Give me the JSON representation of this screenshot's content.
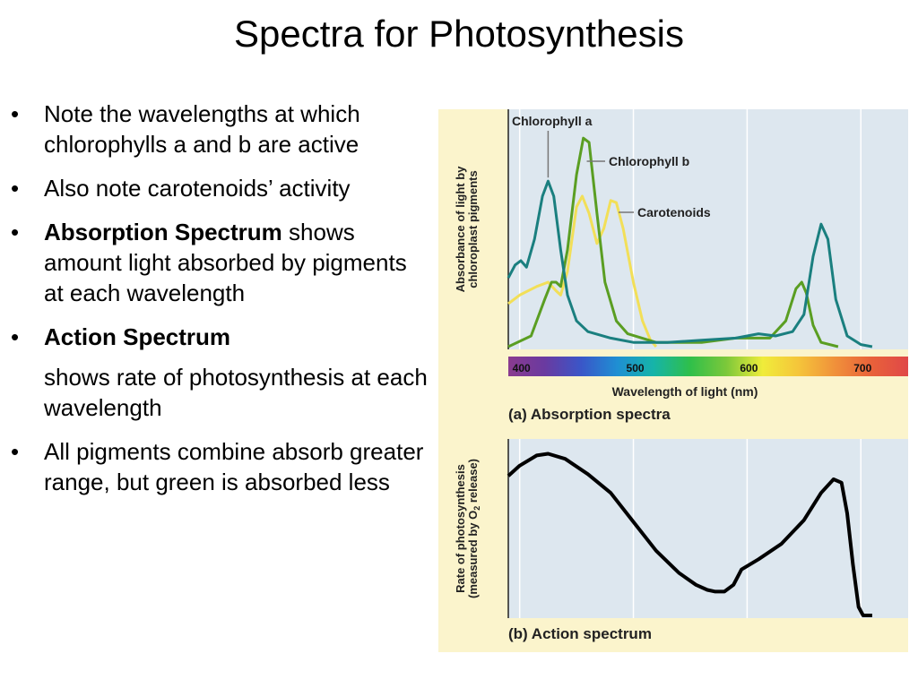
{
  "slide": {
    "title": "Spectra for Photosynthesis",
    "bullets": [
      {
        "bold": "",
        "text": "Note the wavelengths at which chlorophylls a and b are active"
      },
      {
        "bold": "",
        "text": "Also note carotenoids’ activity"
      },
      {
        "bold": "Absorption Spectrum",
        "text": " shows amount light absorbed by pigments at each wavelength"
      },
      {
        "bold": "Action Spectrum",
        "text": ""
      },
      {
        "bold": "",
        "text": "shows rate of photosynthesis at each wavelength",
        "continuation": true
      },
      {
        "bold": "",
        "text": "All pigments combine absorb greater range, but green is absorbed less"
      }
    ],
    "bullet_glyph": "•"
  },
  "chart_data": [
    {
      "type": "line",
      "panel_label": "(a) Absorption spectra",
      "xlabel": "Wavelength of light (nm)",
      "ylabel": "Absorbance of light by chloroplast pigments",
      "xlim": [
        390,
        740
      ],
      "x_ticks": [
        400,
        500,
        600,
        700
      ],
      "grid": true,
      "series": [
        {
          "name": "Chlorophyll a",
          "color": "#1a7f7f",
          "points": [
            [
              390,
              0.32
            ],
            [
              396,
              0.38
            ],
            [
              401,
              0.4
            ],
            [
              406,
              0.37
            ],
            [
              413,
              0.5
            ],
            [
              420,
              0.7
            ],
            [
              425,
              0.77
            ],
            [
              430,
              0.7
            ],
            [
              436,
              0.45
            ],
            [
              442,
              0.24
            ],
            [
              450,
              0.12
            ],
            [
              460,
              0.07
            ],
            [
              480,
              0.04
            ],
            [
              500,
              0.02
            ],
            [
              530,
              0.02
            ],
            [
              560,
              0.03
            ],
            [
              590,
              0.04
            ],
            [
              610,
              0.06
            ],
            [
              625,
              0.05
            ],
            [
              640,
              0.07
            ],
            [
              650,
              0.15
            ],
            [
              658,
              0.42
            ],
            [
              665,
              0.57
            ],
            [
              671,
              0.5
            ],
            [
              678,
              0.22
            ],
            [
              688,
              0.05
            ],
            [
              700,
              0.01
            ],
            [
              710,
              0.0
            ]
          ]
        },
        {
          "name": "Chlorophyll b",
          "color": "#5a9e22",
          "points": [
            [
              390,
              0.0
            ],
            [
              410,
              0.05
            ],
            [
              422,
              0.22
            ],
            [
              428,
              0.3
            ],
            [
              432,
              0.3
            ],
            [
              436,
              0.28
            ],
            [
              442,
              0.45
            ],
            [
              450,
              0.8
            ],
            [
              456,
              0.97
            ],
            [
              461,
              0.95
            ],
            [
              468,
              0.62
            ],
            [
              475,
              0.3
            ],
            [
              485,
              0.12
            ],
            [
              495,
              0.06
            ],
            [
              520,
              0.02
            ],
            [
              560,
              0.02
            ],
            [
              590,
              0.04
            ],
            [
              620,
              0.04
            ],
            [
              634,
              0.12
            ],
            [
              643,
              0.27
            ],
            [
              648,
              0.3
            ],
            [
              652,
              0.25
            ],
            [
              658,
              0.1
            ],
            [
              665,
              0.02
            ],
            [
              680,
              0.0
            ]
          ]
        },
        {
          "name": "Carotenoids",
          "color": "#f2df58",
          "points": [
            [
              390,
              0.2
            ],
            [
              400,
              0.24
            ],
            [
              415,
              0.28
            ],
            [
              425,
              0.3
            ],
            [
              432,
              0.26
            ],
            [
              436,
              0.24
            ],
            [
              442,
              0.35
            ],
            [
              450,
              0.65
            ],
            [
              455,
              0.7
            ],
            [
              461,
              0.62
            ],
            [
              468,
              0.48
            ],
            [
              474,
              0.55
            ],
            [
              480,
              0.68
            ],
            [
              485,
              0.67
            ],
            [
              491,
              0.55
            ],
            [
              500,
              0.3
            ],
            [
              508,
              0.12
            ],
            [
              515,
              0.03
            ],
            [
              520,
              0.0
            ]
          ]
        }
      ],
      "spectrum_bar": [
        "#8a3b8f",
        "#6a3aa0",
        "#3a56c8",
        "#1f8fd3",
        "#16b4a8",
        "#2fbf4a",
        "#7cc83a",
        "#f0ec3a",
        "#f5c43a",
        "#f0903a",
        "#e8613a",
        "#e04848"
      ]
    },
    {
      "type": "line",
      "panel_label": "(b) Action spectrum",
      "xlabel": "",
      "ylabel": "Rate of photosynthesis (measured by O2 release)",
      "xlim": [
        390,
        740
      ],
      "grid": true,
      "series": [
        {
          "color": "#000000",
          "points": [
            [
              390,
              0.82
            ],
            [
              400,
              0.88
            ],
            [
              415,
              0.94
            ],
            [
              425,
              0.95
            ],
            [
              440,
              0.92
            ],
            [
              460,
              0.83
            ],
            [
              480,
              0.72
            ],
            [
              500,
              0.55
            ],
            [
              520,
              0.38
            ],
            [
              540,
              0.25
            ],
            [
              555,
              0.18
            ],
            [
              565,
              0.15
            ],
            [
              572,
              0.14
            ],
            [
              580,
              0.14
            ],
            [
              588,
              0.18
            ],
            [
              595,
              0.27
            ],
            [
              610,
              0.33
            ],
            [
              630,
              0.42
            ],
            [
              650,
              0.56
            ],
            [
              665,
              0.72
            ],
            [
              676,
              0.8
            ],
            [
              683,
              0.78
            ],
            [
              688,
              0.6
            ],
            [
              693,
              0.3
            ],
            [
              698,
              0.05
            ],
            [
              702,
              0.0
            ],
            [
              710,
              0.0
            ]
          ]
        }
      ]
    }
  ]
}
